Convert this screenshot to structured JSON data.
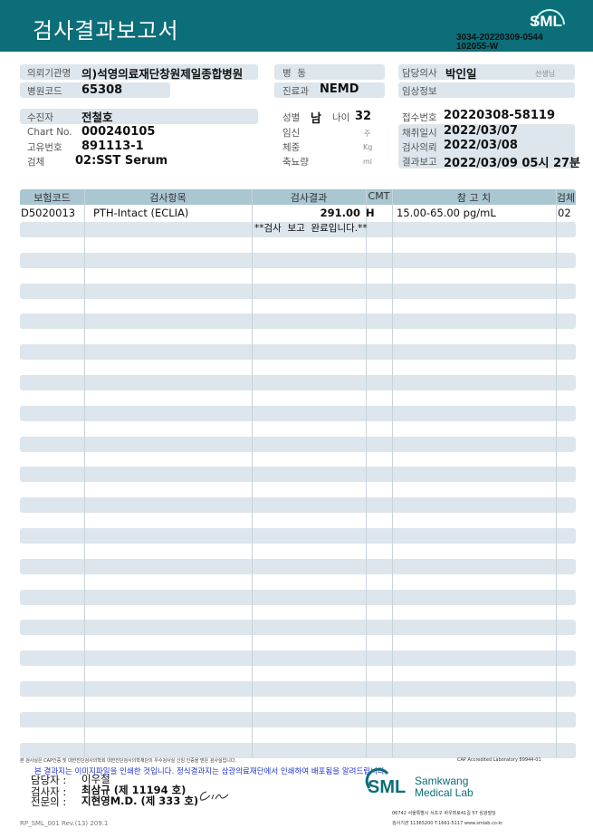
{
  "header": {
    "title": "검사결과보고서",
    "logo": "SML",
    "doc_id_1": "3034-20220309-0544",
    "doc_id_2": "102055-W",
    "brand_color": "#0b6e78"
  },
  "info": {
    "referring_org_label": "의뢰기관명",
    "referring_org": "의)석영의료재단창원제일종합병원",
    "hospital_code_label": "병원코드",
    "hospital_code": "65308",
    "ward_label": "병  동",
    "ward": "",
    "department_label": "진료과",
    "department": "NEMD",
    "doctor_label": "담당의사",
    "doctor": "박인일",
    "doctor_suffix": "선생님",
    "clinical_label": "임상정보",
    "clinical": "",
    "patient_label": "수진자",
    "patient": "전철호",
    "chart_label": "Chart No.",
    "chart": "000240105",
    "id_label": "고유번호",
    "id": "891113-1",
    "specimen_label": "검체",
    "specimen": "02:SST Serum",
    "sex_label": "성별",
    "sex": "남",
    "age_label": "나이",
    "age": "32",
    "pregnancy_label": "임신",
    "pregnancy_unit": "주",
    "weight_label": "체중",
    "weight_unit": "Kg",
    "urine_label": "축뇨량",
    "urine_unit": "ml",
    "receipt_label": "접수번호",
    "receipt": "20220308-58119",
    "collected_label": "채취일시",
    "collected": "2022/03/07",
    "requested_label": "검사의뢰",
    "requested": "2022/03/08",
    "reported_label": "결과보고",
    "reported": "2022/03/09 05시 27분"
  },
  "table": {
    "headers": [
      "보험코드",
      "검사항목",
      "검사결과",
      "CMT",
      "참 고 치",
      "검체"
    ],
    "rows": [
      {
        "code": "D5020013",
        "test": "PTH-Intact (ECLIA)",
        "result": "291.00",
        "cmt": "H",
        "ref": "15.00-65.00 pg/mL",
        "specimen": "02"
      }
    ],
    "note": "**검사  보고  완료입니다.**"
  },
  "footer": {
    "cert_note": "본 검사실은 CAP인증 및 대한진단검사의학회 대한진단검사의학재단의 우수검사실 신임 인증을 받은 검사실입니다.",
    "cap": "CAP Accredited Laboratory 89944-01",
    "notice": "본 결과지는 이미지파일을 인쇄한 것입니다. 정식결과지는 삼광의료재단에서 인쇄하여 배포됨을 알려드립니다.",
    "manager_label": "담당자 :",
    "manager": "이우철",
    "tester_label": "검사자 :",
    "tester": "최삼규 (제 11194 호)",
    "specialist_label": "전문의 :",
    "specialist": "지현영M.D. (제 333 호)",
    "form_id": "RP_SML_001 Rev.(13) 209.1",
    "lab_logo": "SML",
    "lab_name_1": "Samkwang",
    "lab_name_2": "Medical Lab",
    "address": "06742 서울특별시 서초구 바우뫼로41길 57 삼광빌딩",
    "contact": "검사기관 11365200 T.1661-5117 www.smlab.co.kr"
  }
}
